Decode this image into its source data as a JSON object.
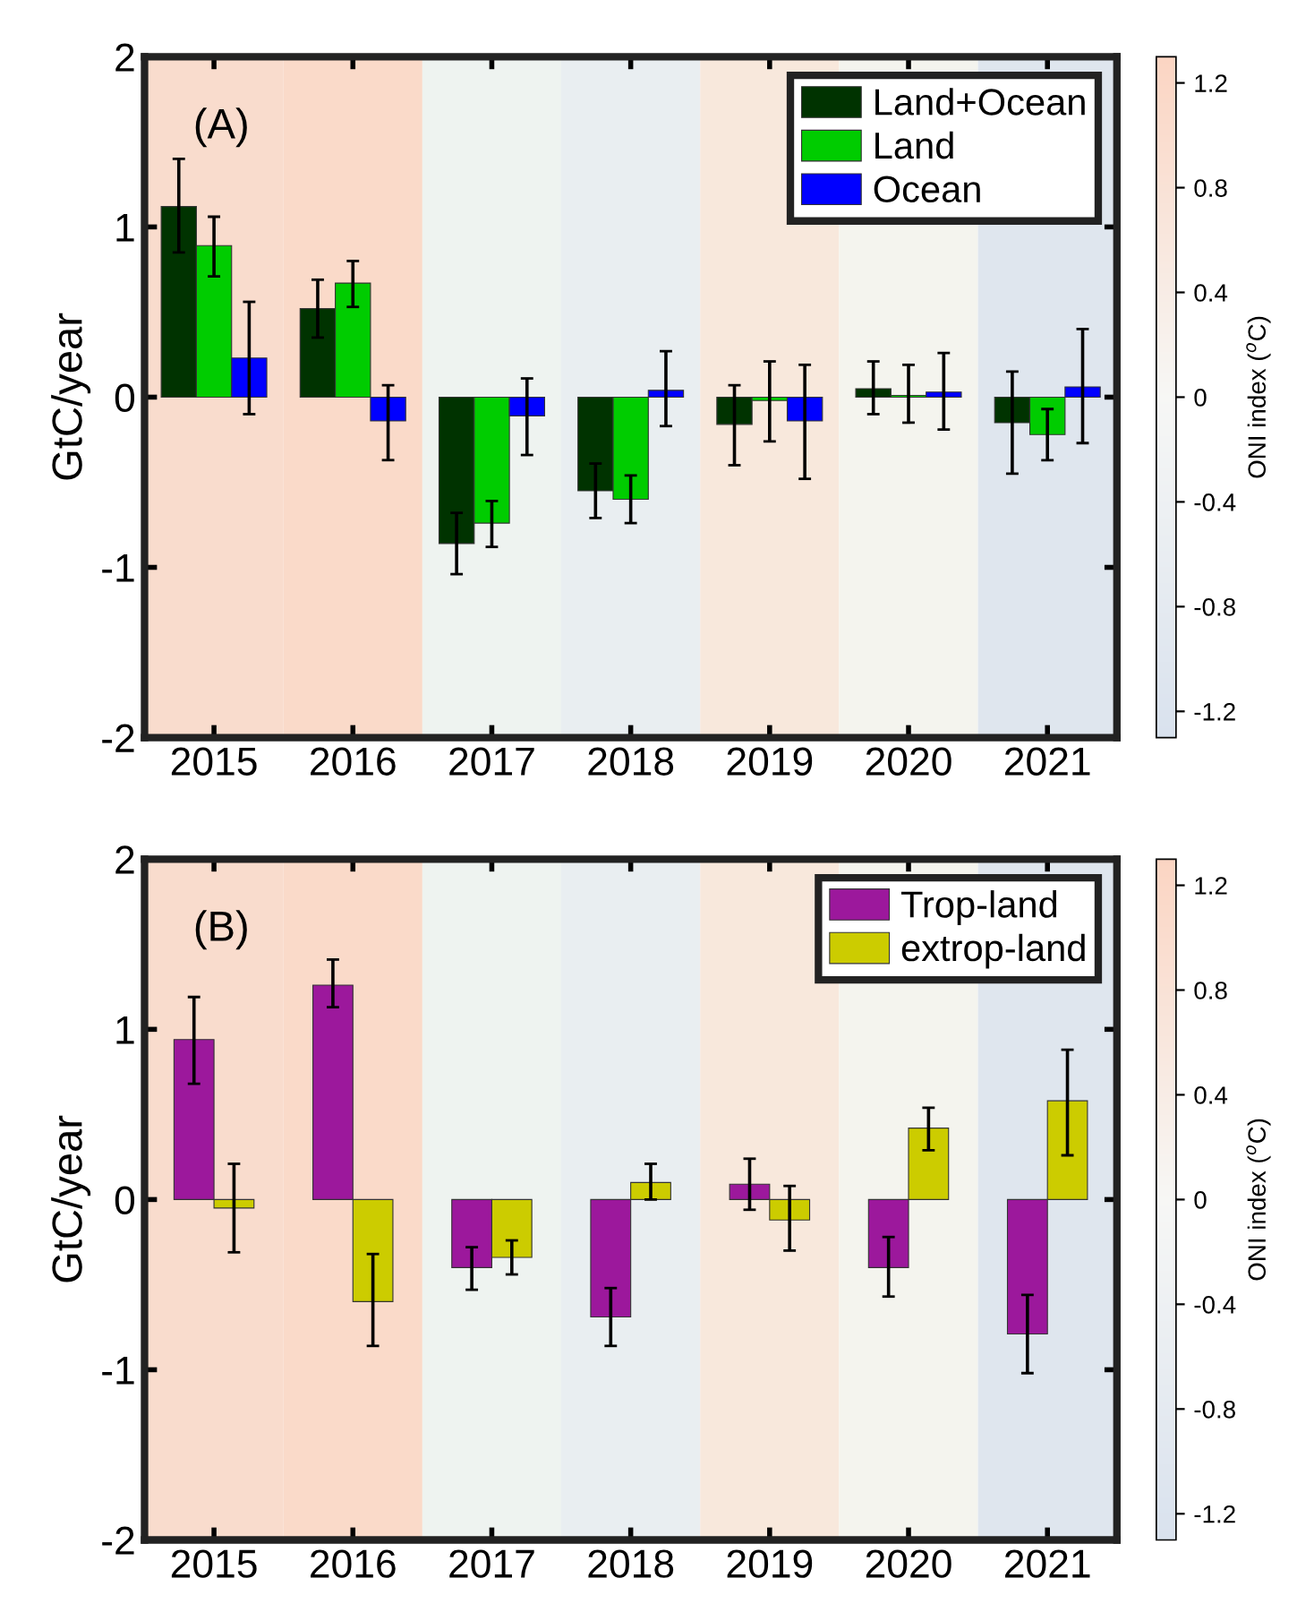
{
  "chart_data": [
    {
      "type": "bar",
      "ylabel": "GtC/year",
      "clabel": "ONI index ($^{o}$C)",
      "annotations": [
        "(A)"
      ],
      "categories": [
        "2015",
        "2016",
        "2017",
        "2018",
        "2019",
        "2020",
        "2021"
      ],
      "ylim": [
        -2,
        2
      ],
      "yticks": [
        -2,
        -1,
        0,
        1,
        2
      ],
      "clim": [
        -1.3,
        1.3
      ],
      "cticks": [
        -1.2,
        -0.8,
        -0.4,
        0,
        0.4,
        0.8,
        1.2
      ],
      "legend": "top right",
      "grid": false,
      "series": [
        {
          "name": "Land+Ocean",
          "color": "#003300",
          "values": [
            1.12,
            0.52,
            -0.86,
            -0.55,
            -0.16,
            0.05,
            -0.15
          ],
          "errors": [
            [
              0.85,
              1.4
            ],
            [
              0.35,
              0.69
            ],
            [
              -1.04,
              -0.68
            ],
            [
              -0.71,
              -0.39
            ],
            [
              -0.4,
              0.07
            ],
            [
              -0.1,
              0.21
            ],
            [
              -0.45,
              0.15
            ]
          ]
        },
        {
          "name": "Land",
          "color": "#00cc00",
          "values": [
            0.89,
            0.67,
            -0.74,
            -0.6,
            -0.02,
            0.01,
            -0.22
          ],
          "errors": [
            [
              0.71,
              1.06
            ],
            [
              0.53,
              0.8
            ],
            [
              -0.88,
              -0.61
            ],
            [
              -0.74,
              -0.46
            ],
            [
              -0.26,
              0.21
            ],
            [
              -0.15,
              0.19
            ],
            [
              -0.37,
              -0.07
            ]
          ]
        },
        {
          "name": "Ocean",
          "color": "#0000ff",
          "values": [
            0.23,
            -0.14,
            -0.11,
            0.04,
            -0.14,
            0.03,
            0.06
          ],
          "errors": [
            [
              -0.1,
              0.56
            ],
            [
              -0.37,
              0.07
            ],
            [
              -0.34,
              0.11
            ],
            [
              -0.17,
              0.27
            ],
            [
              -0.48,
              0.19
            ],
            [
              -0.19,
              0.26
            ],
            [
              -0.27,
              0.4
            ]
          ]
        }
      ],
      "bands": [
        {
          "axis": "x",
          "from": "2015",
          "to": "2015",
          "color": "#f9dccd"
        },
        {
          "axis": "x",
          "from": "2016",
          "to": "2016",
          "color": "#fadac9"
        },
        {
          "axis": "x",
          "from": "2017",
          "to": "2017",
          "color": "#eef3f0"
        },
        {
          "axis": "x",
          "from": "2018",
          "to": "2018",
          "color": "#e9eef1"
        },
        {
          "axis": "x",
          "from": "2019",
          "to": "2019",
          "color": "#f8e8dc"
        },
        {
          "axis": "x",
          "from": "2020",
          "to": "2020",
          "color": "#f4f4ee"
        },
        {
          "axis": "x",
          "from": "2021",
          "to": "2021",
          "color": "#dfe6ee"
        }
      ]
    },
    {
      "type": "bar",
      "ylabel": "GtC/year",
      "clabel": "ONI index ($^{o}$C)",
      "annotations": [
        "(B)"
      ],
      "categories": [
        "2015",
        "2016",
        "2017",
        "2018",
        "2019",
        "2020",
        "2021"
      ],
      "ylim": [
        -2,
        2
      ],
      "yticks": [
        -2,
        -1,
        0,
        1,
        2
      ],
      "clim": [
        -1.3,
        1.3
      ],
      "cticks": [
        -1.2,
        -0.8,
        -0.4,
        0,
        0.4,
        0.8,
        1.2
      ],
      "legend": "top right",
      "grid": false,
      "series": [
        {
          "name": "Trop-land",
          "color": "#9c189c",
          "values": [
            0.94,
            1.26,
            -0.4,
            -0.69,
            0.09,
            -0.4,
            -0.79
          ],
          "errors": [
            [
              0.68,
              1.19
            ],
            [
              1.13,
              1.41
            ],
            [
              -0.53,
              -0.28
            ],
            [
              -0.86,
              -0.52
            ],
            [
              -0.06,
              0.24
            ],
            [
              -0.57,
              -0.22
            ],
            [
              -1.02,
              -0.56
            ]
          ]
        },
        {
          "name": "extrop-land",
          "color": "#cccc00",
          "values": [
            -0.05,
            -0.6,
            -0.34,
            0.1,
            -0.12,
            0.42,
            0.58
          ],
          "errors": [
            [
              -0.31,
              0.21
            ],
            [
              -0.86,
              -0.32
            ],
            [
              -0.44,
              -0.24
            ],
            [
              0.0,
              0.21
            ],
            [
              -0.3,
              0.08
            ],
            [
              0.29,
              0.54
            ],
            [
              0.26,
              0.88
            ]
          ]
        }
      ],
      "bands": [
        {
          "axis": "x",
          "from": "2015",
          "to": "2015",
          "color": "#f9dccd"
        },
        {
          "axis": "x",
          "from": "2016",
          "to": "2016",
          "color": "#fadac9"
        },
        {
          "axis": "x",
          "from": "2017",
          "to": "2017",
          "color": "#eef3f0"
        },
        {
          "axis": "x",
          "from": "2018",
          "to": "2018",
          "color": "#e9eef1"
        },
        {
          "axis": "x",
          "from": "2019",
          "to": "2019",
          "color": "#f8e8dc"
        },
        {
          "axis": "x",
          "from": "2020",
          "to": "2020",
          "color": "#f4f4ee"
        },
        {
          "axis": "x",
          "from": "2021",
          "to": "2021",
          "color": "#dfe6ee"
        }
      ]
    }
  ]
}
